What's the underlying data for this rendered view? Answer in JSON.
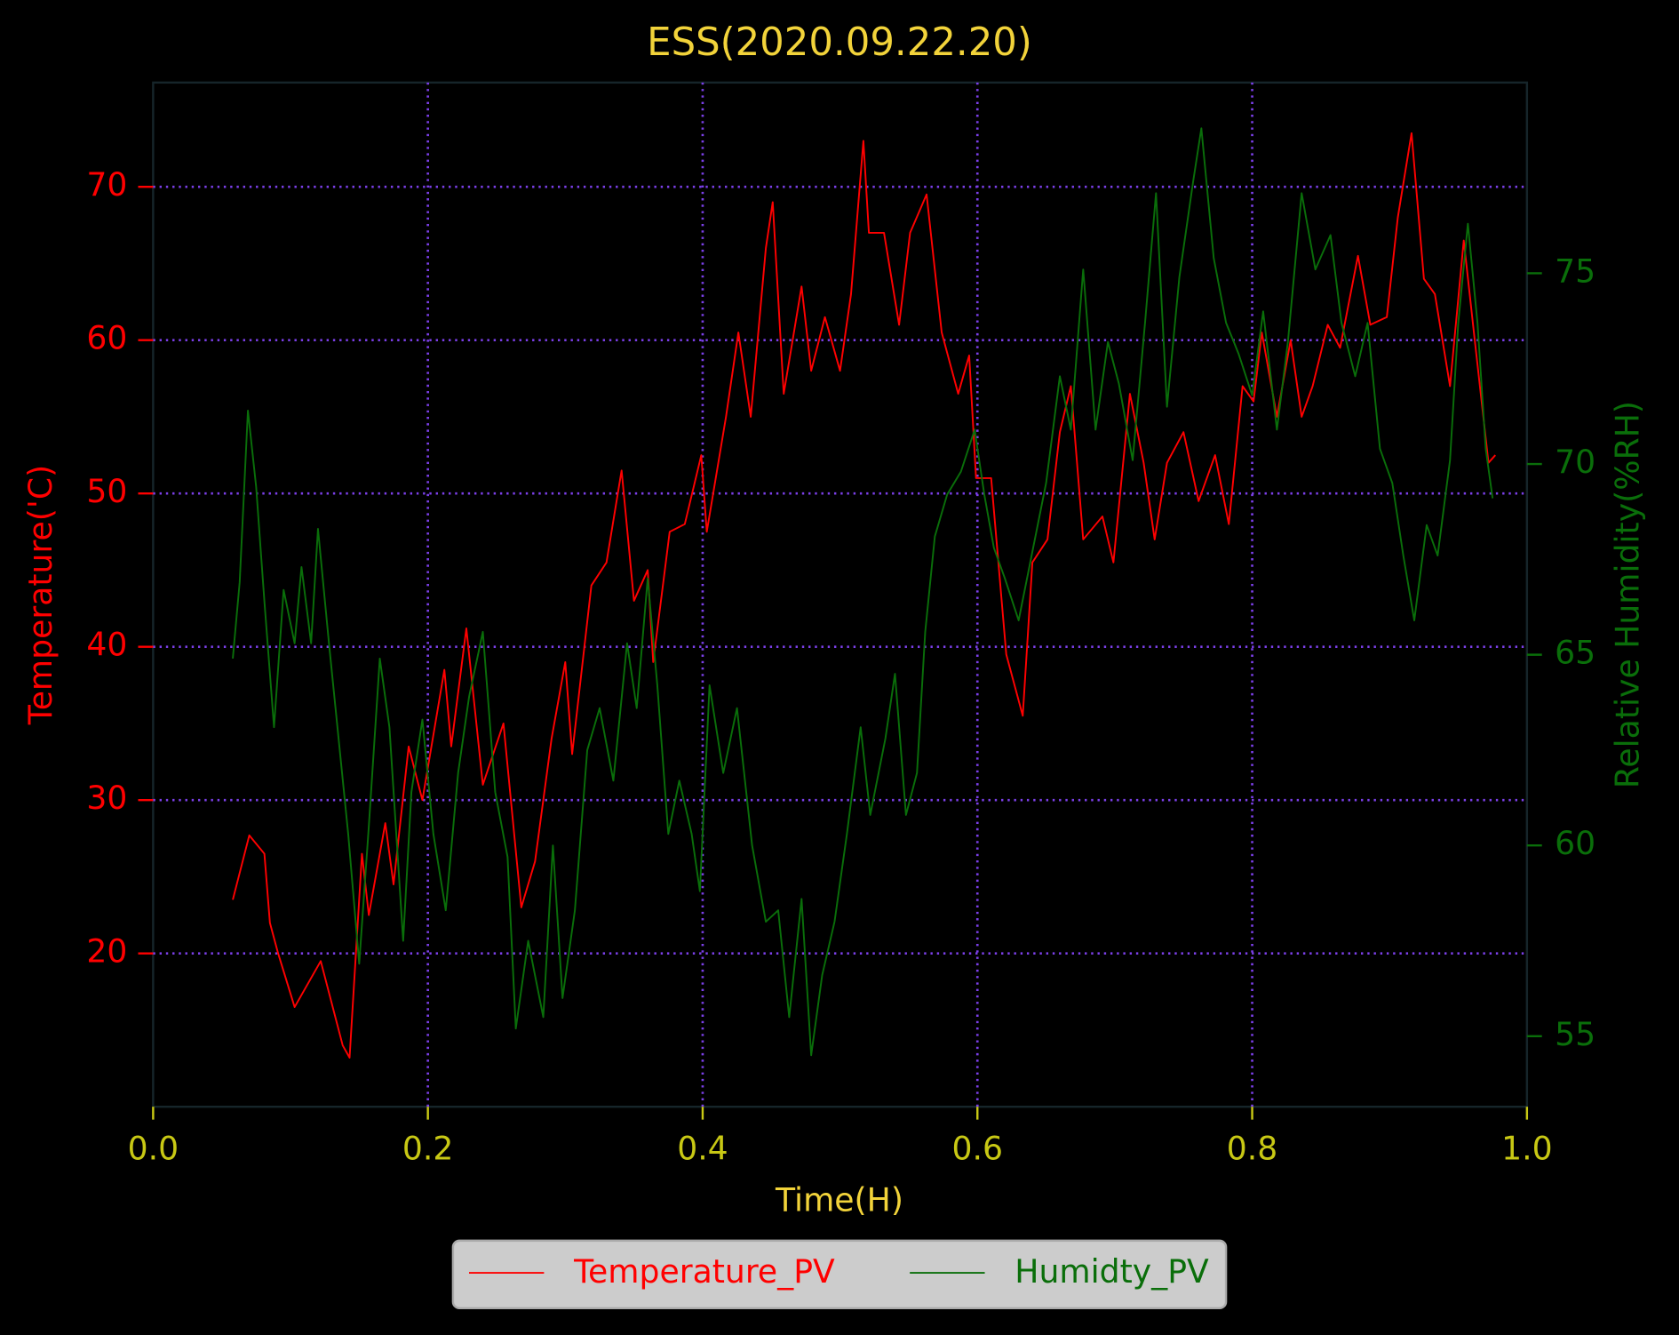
{
  "chart_data": {
    "type": "line",
    "title": "ESS(2020.09.22.20)",
    "x_label": "Time(H)",
    "y_label": "Temperature('C)",
    "y2_label": "Relative Humidity(%RH)",
    "xlim": [
      0,
      1
    ],
    "xticks": [
      {
        "value": 0,
        "label": "0.0"
      },
      0.2,
      0.4,
      0.6,
      0.8,
      {
        "value": 1,
        "label": "1.0"
      }
    ],
    "ylim": [
      10,
      76.8
    ],
    "yticks": [
      20,
      30,
      40,
      50,
      60,
      70
    ],
    "y2lim": [
      53.15,
      80
    ],
    "y2ticks": [
      55,
      60,
      65,
      70,
      75
    ],
    "grid": true,
    "grid_color": "#7b3fe8",
    "legend": "bottom",
    "series": [
      {
        "name": "Temperature_PV",
        "color": "#ff0000",
        "x": [
          0.058,
          0.07,
          0.081,
          0.085,
          0.091,
          0.103,
          0.122,
          0.138,
          0.143,
          0.152,
          0.157,
          0.169,
          0.175,
          0.186,
          0.196,
          0.212,
          0.217,
          0.228,
          0.24,
          0.255,
          0.268,
          0.278,
          0.29,
          0.3,
          0.305,
          0.319,
          0.33,
          0.341,
          0.35,
          0.36,
          0.364,
          0.376,
          0.387,
          0.399,
          0.403,
          0.417,
          0.426,
          0.435,
          0.446,
          0.451,
          0.459,
          0.472,
          0.479,
          0.489,
          0.5,
          0.508,
          0.517,
          0.521,
          0.532,
          0.543,
          0.551,
          0.563,
          0.574,
          0.586,
          0.594,
          0.599,
          0.61,
          0.621,
          0.633,
          0.64,
          0.651,
          0.66,
          0.668,
          0.677,
          0.691,
          0.699,
          0.711,
          0.721,
          0.729,
          0.738,
          0.75,
          0.761,
          0.773,
          0.783,
          0.793,
          0.801,
          0.807,
          0.818,
          0.828,
          0.836,
          0.844,
          0.855,
          0.864,
          0.877,
          0.886,
          0.898,
          0.906,
          0.916,
          0.925,
          0.933,
          0.944,
          0.954,
          0.962,
          0.972,
          0.977
        ],
        "values": [
          23.5,
          27.7,
          26.5,
          22,
          20,
          16.5,
          19.5,
          14,
          13.2,
          26.5,
          22.5,
          28.5,
          24.5,
          33.5,
          30,
          38.5,
          33.5,
          41.2,
          31,
          35,
          23,
          26,
          34,
          39,
          33,
          44,
          45.5,
          51.5,
          43,
          45,
          39,
          47.5,
          48,
          52.5,
          47.5,
          55,
          60.5,
          55,
          66,
          69,
          56.5,
          63.5,
          58,
          61.5,
          58,
          63,
          73,
          67,
          67,
          61,
          67,
          69.5,
          60.5,
          56.5,
          59,
          51,
          51,
          39.5,
          35.5,
          45.5,
          47,
          54,
          57,
          47,
          48.5,
          45.5,
          56.5,
          52,
          47,
          52,
          54,
          49.5,
          52.5,
          48,
          57,
          56,
          60.5,
          55,
          60,
          55,
          57,
          61,
          59.5,
          65.5,
          61,
          61.5,
          68,
          73.5,
          64,
          63,
          57,
          66.5,
          60,
          52,
          52.5
        ]
      },
      {
        "name": "Humidty_PV",
        "color": "#0a6e0a",
        "axis": "y2",
        "x": [
          0.058,
          0.063,
          0.069,
          0.075,
          0.081,
          0.088,
          0.095,
          0.103,
          0.108,
          0.115,
          0.12,
          0.128,
          0.135,
          0.142,
          0.15,
          0.157,
          0.165,
          0.172,
          0.182,
          0.188,
          0.196,
          0.204,
          0.213,
          0.222,
          0.23,
          0.24,
          0.249,
          0.258,
          0.264,
          0.273,
          0.284,
          0.291,
          0.298,
          0.307,
          0.316,
          0.325,
          0.335,
          0.345,
          0.352,
          0.36,
          0.367,
          0.375,
          0.383,
          0.392,
          0.398,
          0.405,
          0.415,
          0.425,
          0.436,
          0.446,
          0.455,
          0.463,
          0.472,
          0.479,
          0.487,
          0.496,
          0.505,
          0.515,
          0.522,
          0.533,
          0.54,
          0.548,
          0.556,
          0.562,
          0.569,
          0.578,
          0.588,
          0.598,
          0.605,
          0.612,
          0.62,
          0.63,
          0.64,
          0.65,
          0.66,
          0.668,
          0.677,
          0.686,
          0.695,
          0.703,
          0.713,
          0.722,
          0.73,
          0.738,
          0.747,
          0.757,
          0.763,
          0.772,
          0.781,
          0.79,
          0.8,
          0.808,
          0.818,
          0.826,
          0.836,
          0.846,
          0.857,
          0.865,
          0.875,
          0.884,
          0.893,
          0.902,
          0.91,
          0.918,
          0.927,
          0.935,
          0.944,
          0.95,
          0.957,
          0.964,
          0.97,
          0.975
        ],
        "values": [
          64.9,
          66.9,
          71.4,
          69.4,
          66.4,
          63.1,
          66.7,
          65.3,
          67.3,
          65.3,
          68.3,
          65.3,
          62.8,
          60.3,
          56.9,
          60.5,
          64.9,
          63.1,
          57.5,
          61.4,
          63.3,
          60.3,
          58.3,
          61.9,
          63.9,
          65.6,
          61.4,
          59.7,
          55.2,
          57.5,
          55.5,
          60.0,
          56.0,
          58.3,
          62.5,
          63.6,
          61.7,
          65.3,
          63.6,
          67.0,
          64.2,
          60.3,
          61.7,
          60.3,
          58.8,
          64.2,
          61.9,
          63.6,
          60.0,
          58.0,
          58.3,
          55.5,
          58.6,
          54.5,
          56.6,
          58.0,
          60.3,
          63.1,
          60.8,
          62.8,
          64.5,
          60.8,
          61.9,
          65.6,
          68.1,
          69.2,
          69.8,
          70.9,
          69.2,
          67.8,
          67.0,
          65.9,
          67.7,
          69.5,
          72.3,
          70.9,
          75.1,
          70.9,
          73.2,
          72.1,
          70.1,
          73.7,
          77.1,
          71.5,
          74.9,
          77.4,
          78.8,
          75.4,
          73.7,
          72.9,
          71.8,
          74.0,
          70.9,
          73.2,
          77.1,
          75.1,
          76.0,
          73.7,
          72.3,
          73.7,
          70.4,
          69.5,
          67.6,
          65.9,
          68.4,
          67.6,
          70.1,
          73.7,
          76.3,
          73.7,
          70.4,
          69.1
        ]
      }
    ]
  }
}
